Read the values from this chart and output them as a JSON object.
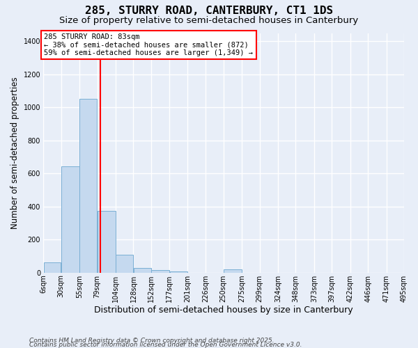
{
  "title1": "285, STURRY ROAD, CANTERBURY, CT1 1DS",
  "title2": "Size of property relative to semi-detached houses in Canterbury",
  "xlabel": "Distribution of semi-detached houses by size in Canterbury",
  "ylabel": "Number of semi-detached properties",
  "footer1": "Contains HM Land Registry data © Crown copyright and database right 2025.",
  "footer2": "Contains public sector information licensed under the Open Government Licence v3.0.",
  "annotation_title": "285 STURRY ROAD: 83sqm",
  "annotation_line1": "← 38% of semi-detached houses are smaller (872)",
  "annotation_line2": "59% of semi-detached houses are larger (1,349) →",
  "subject_size": 83,
  "bin_edges": [
    6,
    30,
    55,
    79,
    104,
    128,
    152,
    177,
    201,
    226,
    250,
    275,
    299,
    324,
    348,
    373,
    397,
    422,
    446,
    471,
    495
  ],
  "bar_heights": [
    60,
    645,
    1050,
    375,
    110,
    30,
    15,
    5,
    0,
    0,
    20,
    0,
    0,
    0,
    0,
    0,
    0,
    0,
    0,
    0
  ],
  "bar_color": "#c5d9ef",
  "bar_edge_color": "#7aafd4",
  "red_line_x": 83,
  "ylim": [
    0,
    1450
  ],
  "yticks": [
    0,
    200,
    400,
    600,
    800,
    1000,
    1200,
    1400
  ],
  "xtick_labels": [
    "6sqm",
    "30sqm",
    "55sqm",
    "79sqm",
    "104sqm",
    "128sqm",
    "152sqm",
    "177sqm",
    "201sqm",
    "226sqm",
    "250sqm",
    "275sqm",
    "299sqm",
    "324sqm",
    "348sqm",
    "373sqm",
    "397sqm",
    "422sqm",
    "446sqm",
    "471sqm",
    "495sqm"
  ],
  "bg_color": "#e8eef8",
  "plot_bg_color": "#e8eef8",
  "grid_color": "#ffffff",
  "title_fontsize": 11.5,
  "subtitle_fontsize": 9.5,
  "axis_label_fontsize": 8.5,
  "tick_fontsize": 7,
  "ann_fontsize": 7.5,
  "footer_fontsize": 6.5
}
